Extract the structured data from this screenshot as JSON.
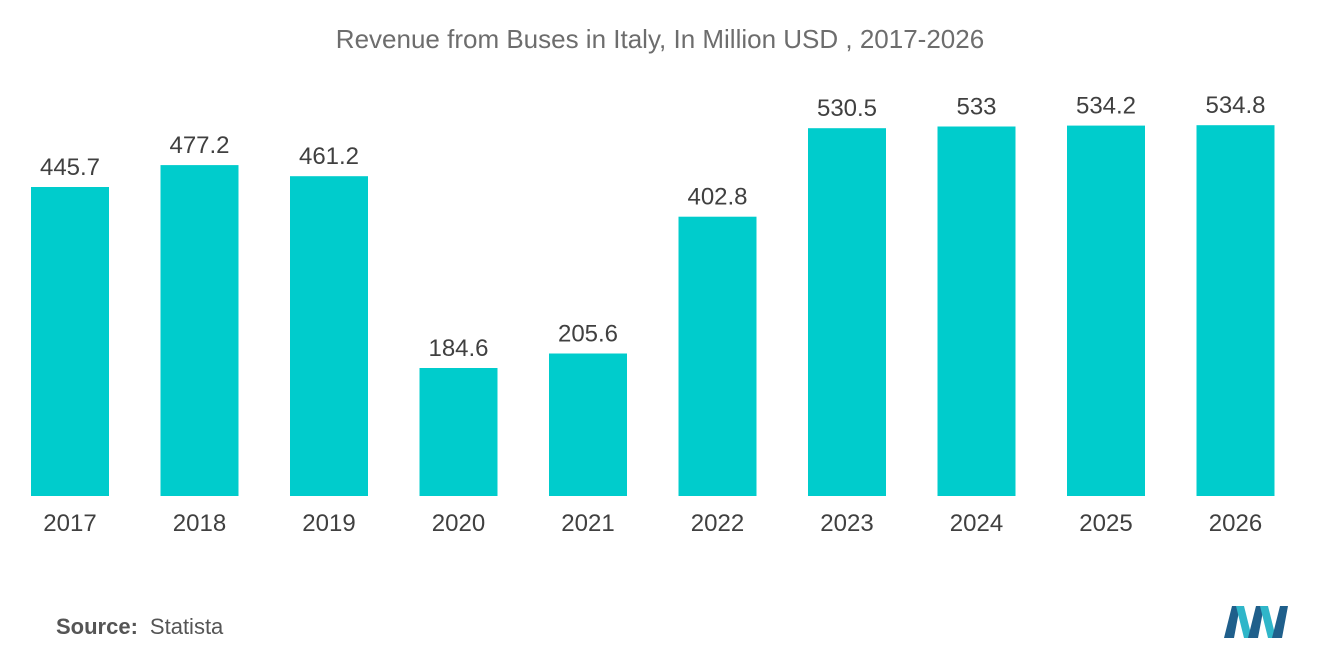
{
  "chart_data": {
    "type": "bar",
    "title": "Revenue from Buses in Italy, In Million USD , 2017-2026",
    "xlabel": "",
    "ylabel": "",
    "categories": [
      "2017",
      "2018",
      "2019",
      "2020",
      "2021",
      "2022",
      "2023",
      "2024",
      "2025",
      "2026"
    ],
    "values": [
      445.7,
      477.2,
      461.2,
      184.6,
      205.6,
      402.8,
      530.5,
      533,
      534.2,
      534.8
    ],
    "value_labels": [
      "445.7",
      "477.2",
      "461.2",
      "184.6",
      "205.6",
      "402.8",
      "530.5",
      "533",
      "534.2",
      "534.8"
    ],
    "ylim": [
      0,
      600
    ],
    "grid": false,
    "legend": "none",
    "bar_color": "#00cccc"
  },
  "footer": {
    "source_label": "Source:",
    "source_value": "Statista"
  },
  "logo": {
    "icon": "mordor-intelligence-logo-icon",
    "colors": [
      "#1f5f8b",
      "#2fb6c9"
    ]
  }
}
